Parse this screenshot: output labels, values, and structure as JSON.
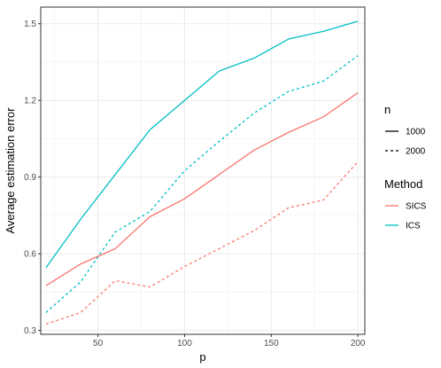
{
  "chart_data": {
    "type": "line",
    "xlabel": "p",
    "ylabel": "Average estimation error",
    "xlim": [
      17,
      204
    ],
    "ylim": [
      0.285,
      1.565
    ],
    "x_ticks": [
      50,
      100,
      150,
      200
    ],
    "y_ticks": [
      0.3,
      0.6,
      0.9,
      1.2,
      1.5
    ],
    "x_tick_labels": [
      "50",
      "100",
      "150",
      "200"
    ],
    "y_tick_labels": [
      "0.3",
      "0.6",
      "0.9",
      "1.2",
      "1.5"
    ],
    "grid": true,
    "legend_placement": "right",
    "legends": [
      {
        "title": "n",
        "kind": "linetype",
        "entries": [
          {
            "label": "1000",
            "dash": "solid"
          },
          {
            "label": "2000",
            "dash": "dashed"
          }
        ]
      },
      {
        "title": "Method",
        "kind": "color",
        "entries": [
          {
            "label": "SICS",
            "color": "#F8766D"
          },
          {
            "label": "ICS",
            "color": "#00BFC4"
          }
        ]
      }
    ],
    "series": [
      {
        "method": "ICS",
        "n": "1000",
        "color": "#00BFC4",
        "dash": "solid",
        "x": [
          20,
          40,
          60,
          80,
          100,
          120,
          140,
          160,
          180,
          200
        ],
        "y": [
          0.545,
          0.735,
          0.91,
          1.085,
          1.2,
          1.315,
          1.365,
          1.44,
          1.47,
          1.51
        ]
      },
      {
        "method": "ICS",
        "n": "2000",
        "color": "#00BFC4",
        "dash": "dashed",
        "x": [
          20,
          40,
          60,
          80,
          100,
          120,
          140,
          160,
          180,
          200
        ],
        "y": [
          0.37,
          0.49,
          0.685,
          0.765,
          0.925,
          1.04,
          1.15,
          1.235,
          1.275,
          1.375
        ]
      },
      {
        "method": "SICS",
        "n": "1000",
        "color": "#F8766D",
        "dash": "solid",
        "x": [
          20,
          40,
          60,
          80,
          100,
          120,
          140,
          160,
          180,
          200
        ],
        "y": [
          0.475,
          0.56,
          0.62,
          0.745,
          0.815,
          0.91,
          1.005,
          1.075,
          1.135,
          1.23
        ]
      },
      {
        "method": "SICS",
        "n": "2000",
        "color": "#F8766D",
        "dash": "dashed",
        "x": [
          20,
          40,
          60,
          80,
          100,
          120,
          140,
          160,
          180,
          200
        ],
        "y": [
          0.325,
          0.37,
          0.495,
          0.47,
          0.55,
          0.62,
          0.69,
          0.78,
          0.81,
          0.96
        ]
      }
    ]
  }
}
